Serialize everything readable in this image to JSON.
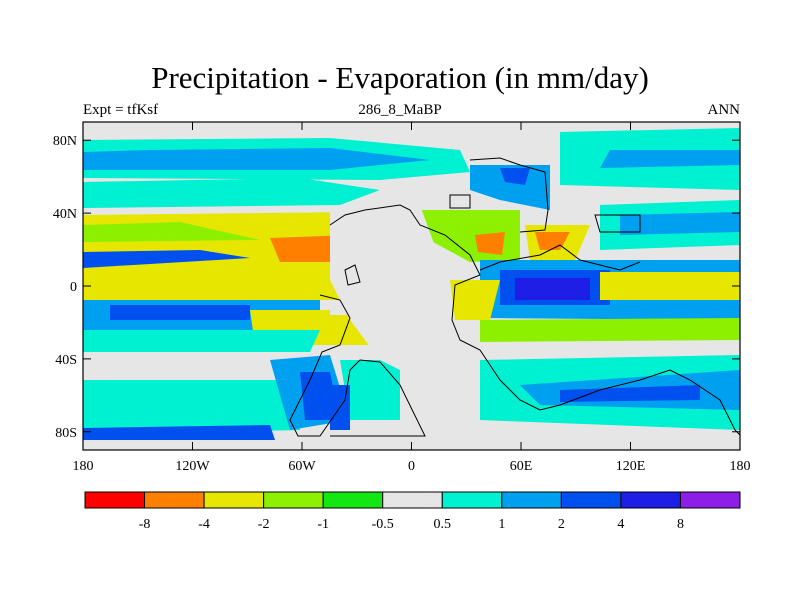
{
  "title": "Precipitation - Evaporation (in mm/day)",
  "subtitle_left": "Expt = tfKsf",
  "subtitle_center": "286_8_MaBP",
  "subtitle_right": "ANN",
  "chart_data": {
    "type": "heatmap",
    "xlim": [
      -180,
      180
    ],
    "ylim": [
      -90,
      90
    ],
    "x_ticks": [
      "180",
      "120W",
      "60W",
      "0",
      "60E",
      "120E",
      "180"
    ],
    "x_tick_values": [
      -180,
      -120,
      -60,
      0,
      60,
      120,
      180
    ],
    "y_ticks": [
      "80N",
      "40N",
      "0",
      "40S",
      "80S"
    ],
    "y_tick_values": [
      80,
      40,
      0,
      -40,
      -80
    ],
    "colorbar": {
      "colors": [
        "#ff0000",
        "#ff8000",
        "#e6e600",
        "#8cf000",
        "#14e614",
        "#e6e6e6",
        "#00f0d2",
        "#00a0f0",
        "#0050f0",
        "#1e1ee6",
        "#8c1ee6"
      ],
      "labels": [
        "-8",
        "-4",
        "-2",
        "-1",
        "-0.5",
        "0.5",
        "1",
        "2",
        "4",
        "8"
      ]
    }
  }
}
